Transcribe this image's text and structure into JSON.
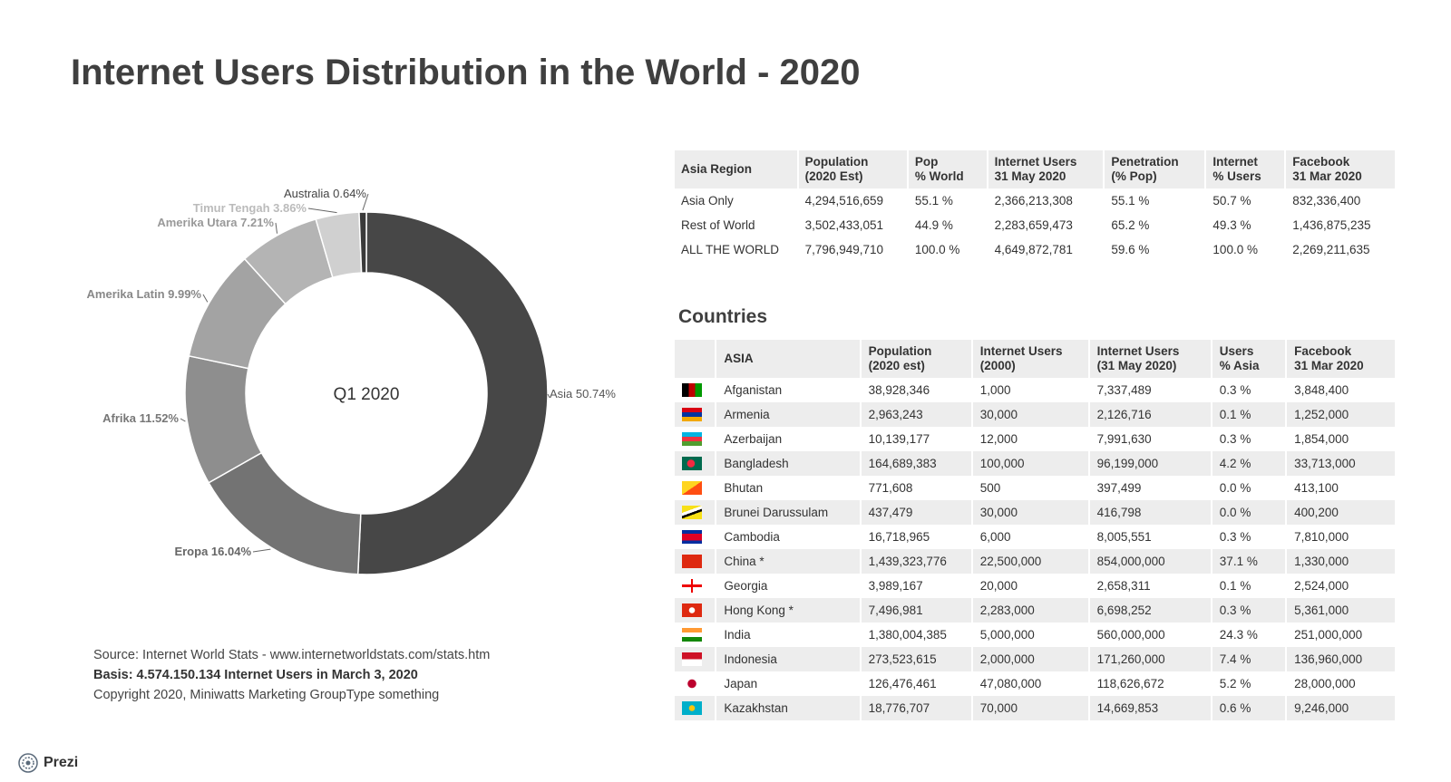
{
  "title": "Internet Users Distribution in the World - 2020",
  "chart_data": {
    "type": "pie",
    "center_label": "Q1 2020",
    "slices": [
      {
        "label": "Asia 50.74%",
        "value": 50.74,
        "color": "#474747"
      },
      {
        "label": "Eropa 16.04%",
        "value": 16.04,
        "color": "#737373"
      },
      {
        "label": "Afrika 11.52%",
        "value": 11.52,
        "color": "#8e8e8e"
      },
      {
        "label": "Amerika Latin 9.99%",
        "value": 9.99,
        "color": "#a3a3a3"
      },
      {
        "label": "Amerika Utara 7.21%",
        "value": 7.21,
        "color": "#b4b4b4"
      },
      {
        "label": "Timur Tengah 3.86%",
        "value": 3.86,
        "color": "#d0d0d0"
      },
      {
        "label": "Australia 0.64%",
        "value": 0.64,
        "color": "#3a3a3a"
      }
    ]
  },
  "source": {
    "line1": "Source: Internet World Stats - www.internetworldstats.com/stats.htm",
    "line2": "Basis: 4.574.150.134 Internet Users in March 3, 2020",
    "line3": "Copyright 2020, Miniwatts Marketing GroupType something"
  },
  "region_table": {
    "headers": [
      "Asia Region",
      "Population\n(2020 Est)",
      "Pop\n% World",
      "Internet Users\n31 May 2020",
      "Penetration\n(% Pop)",
      "Internet\n% Users",
      "Facebook\n31 Mar 2020"
    ],
    "rows": [
      [
        "Asia Only",
        "4,294,516,659",
        "55.1 %",
        "2,366,213,308",
        "55.1 %",
        "50.7 %",
        "832,336,400"
      ],
      [
        "Rest of World",
        "3,502,433,051",
        "44.9 %",
        "2,283,659,473",
        "65.2 %",
        "49.3 %",
        "1,436,875,235"
      ],
      [
        "ALL THE WORLD",
        "7,796,949,710",
        "100.0 %",
        "4,649,872,781",
        "59.6 %",
        "100.0 %",
        "2,269,211,635"
      ]
    ]
  },
  "countries_title": "Countries",
  "country_table": {
    "headers": [
      "",
      "ASIA",
      "Population\n(2020 est)",
      "Internet Users\n(2000)",
      "Internet Users\n(31 May 2020)",
      "Users\n% Asia",
      "Facebook\n31 Mar 2020"
    ],
    "rows": [
      {
        "flag": "afghanistan-flag-icon",
        "cells": [
          "Afganistan",
          "38,928,346",
          "1,000",
          "7,337,489",
          "0.3 %",
          "3,848,400"
        ]
      },
      {
        "flag": "armenia-flag-icon",
        "cells": [
          "Armenia",
          "2,963,243",
          "30,000",
          "2,126,716",
          "0.1 %",
          "1,252,000"
        ]
      },
      {
        "flag": "azerbaijan-flag-icon",
        "cells": [
          "Azerbaijan",
          "10,139,177",
          "12,000",
          "7,991,630",
          "0.3 %",
          "1,854,000"
        ]
      },
      {
        "flag": "bangladesh-flag-icon",
        "cells": [
          "Bangladesh",
          "164,689,383",
          "100,000",
          "96,199,000",
          "4.2 %",
          "33,713,000"
        ]
      },
      {
        "flag": "bhutan-flag-icon",
        "cells": [
          "Bhutan",
          "771,608",
          "500",
          "397,499",
          "0.0 %",
          "413,100"
        ]
      },
      {
        "flag": "brunei-flag-icon",
        "cells": [
          "Brunei Darussulam",
          "437,479",
          "30,000",
          "416,798",
          "0.0 %",
          "400,200"
        ]
      },
      {
        "flag": "cambodia-flag-icon",
        "cells": [
          "Cambodia",
          "16,718,965",
          "6,000",
          "8,005,551",
          "0.3 %",
          "7,810,000"
        ]
      },
      {
        "flag": "china-flag-icon",
        "cells": [
          "China *",
          "1,439,323,776",
          "22,500,000",
          "854,000,000",
          "37.1 %",
          "1,330,000"
        ]
      },
      {
        "flag": "georgia-flag-icon",
        "cells": [
          "Georgia",
          "3,989,167",
          "20,000",
          "2,658,311",
          "0.1 %",
          "2,524,000"
        ]
      },
      {
        "flag": "hong-kong-flag-icon",
        "cells": [
          "Hong Kong *",
          "7,496,981",
          "2,283,000",
          "6,698,252",
          "0.3 %",
          "5,361,000"
        ]
      },
      {
        "flag": "india-flag-icon",
        "cells": [
          "India",
          "1,380,004,385",
          "5,000,000",
          "560,000,000",
          "24.3 %",
          "251,000,000"
        ]
      },
      {
        "flag": "indonesia-flag-icon",
        "cells": [
          "Indonesia",
          "273,523,615",
          "2,000,000",
          "171,260,000",
          "7.4 %",
          "136,960,000"
        ]
      },
      {
        "flag": "japan-flag-icon",
        "cells": [
          "Japan",
          "126,476,461",
          "47,080,000",
          "118,626,672",
          "5.2 %",
          "28,000,000"
        ]
      },
      {
        "flag": "kazakhstan-flag-icon",
        "cells": [
          "Kazakhstan",
          "18,776,707",
          "70,000",
          "14,669,853",
          "0.6 %",
          "9,246,000"
        ]
      }
    ]
  },
  "brand": "Prezi"
}
